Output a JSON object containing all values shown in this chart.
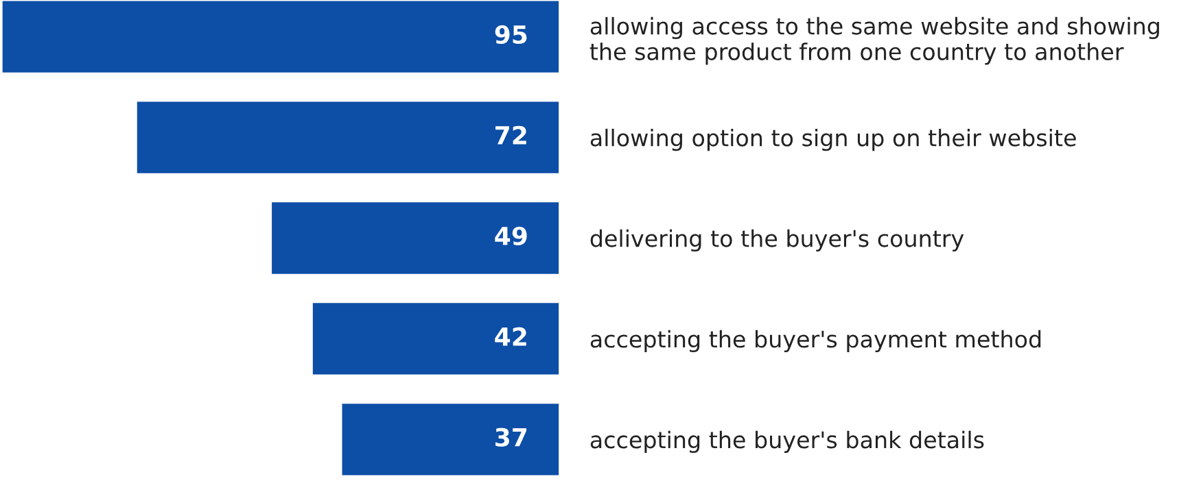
{
  "chart_data": {
    "type": "bar",
    "orientation": "horizontal",
    "data_labels": true,
    "grid": false,
    "legend": false,
    "categories": [
      "allowing access to the same website and showing\nthe same product from one country to another",
      "allowing option to sign up on their website",
      "delivering to the buyer's country",
      "accepting the buyer's payment method",
      "accepting the buyer's bank details"
    ],
    "values": [
      95,
      72,
      49,
      42,
      37
    ],
    "color": "#0d4ea6"
  }
}
